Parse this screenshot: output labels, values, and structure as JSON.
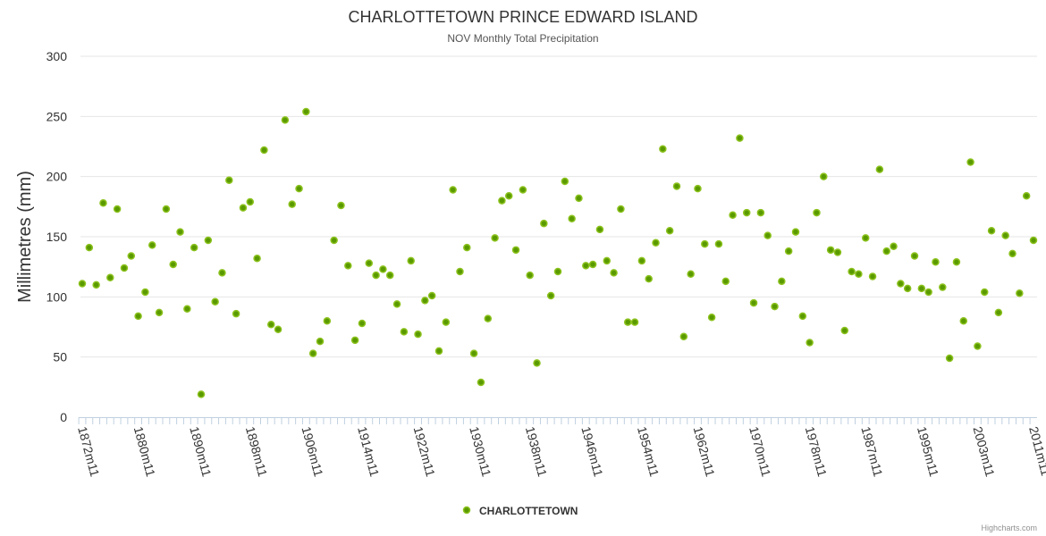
{
  "chart_data": {
    "type": "scatter",
    "title": "CHARLOTTETOWN PRINCE EDWARD ISLAND",
    "subtitle": "NOV Monthly Total Precipitation",
    "xlabel": "",
    "ylabel": "Millimetres (mm)",
    "ylim": [
      0,
      300
    ],
    "yticks": [
      0,
      50,
      100,
      150,
      200,
      250,
      300
    ],
    "grid": true,
    "legend_position": "bottom-center",
    "categories": [
      "1872m11",
      "1873m11",
      "1874m11",
      "1875m11",
      "1876m11",
      "1877m11",
      "1878m11",
      "1879m11",
      "1880m11",
      "1881m11",
      "1884m11",
      "1885m11",
      "1886m11",
      "1887m11",
      "1888m11",
      "1889m11",
      "1890m11",
      "1891m11",
      "1892m11",
      "1893m11",
      "1894m11",
      "1895m11",
      "1896m11",
      "1897m11",
      "1898m11",
      "1899m11",
      "1900m11",
      "1901m11",
      "1902m11",
      "1903m11",
      "1904m11",
      "1905m11",
      "1906m11",
      "1907m11",
      "1908m11",
      "1909m11",
      "1910m11",
      "1911m11",
      "1912m11",
      "1913m11",
      "1914m11",
      "1915m11",
      "1916m11",
      "1917m11",
      "1918m11",
      "1919m11",
      "1920m11",
      "1921m11",
      "1922m11",
      "1923m11",
      "1924m11",
      "1925m11",
      "1926m11",
      "1927m11",
      "1928m11",
      "1929m11",
      "1930m11",
      "1931m11",
      "1932m11",
      "1933m11",
      "1934m11",
      "1935m11",
      "1936m11",
      "1937m11",
      "1938m11",
      "1939m11",
      "1940m11",
      "1941m11",
      "1942m11",
      "1943m11",
      "1944m11",
      "1945m11",
      "1946m11",
      "1947m11",
      "1948m11",
      "1949m11",
      "1950m11",
      "1951m11",
      "1952m11",
      "1953m11",
      "1954m11",
      "1955m11",
      "1956m11",
      "1957m11",
      "1958m11",
      "1959m11",
      "1960m11",
      "1961m11",
      "1962m11",
      "1963m11",
      "1964m11",
      "1965m11",
      "1966m11",
      "1967m11",
      "1968m11",
      "1969m11",
      "1970m11",
      "1971m11",
      "1972m11",
      "1973m11",
      "1974m11",
      "1975m11",
      "1976m11",
      "1977m11",
      "1978m11",
      "1979m11",
      "1981m11",
      "1982m11",
      "1983m11",
      "1984m11",
      "1985m11",
      "1986m11",
      "1987m11",
      "1988m11",
      "1989m11",
      "1990m11",
      "1991m11",
      "1992m11",
      "1993m11",
      "1994m11",
      "1995m11",
      "1996m11",
      "1997m11",
      "1998m11",
      "1999m11",
      "2000m11",
      "2001m11",
      "2002m11",
      "2003m11",
      "2004m11",
      "2005m11",
      "2006m11",
      "2007m11",
      "2008m11",
      "2009m11",
      "2010m11",
      "2011m11"
    ],
    "tick_label_every": 8,
    "series": [
      {
        "name": "CHARLOTTETOWN",
        "color": "#5a9a00",
        "values": [
          111,
          141,
          110,
          178,
          116,
          173,
          124,
          134,
          84,
          104,
          143,
          87,
          173,
          127,
          154,
          90,
          141,
          19,
          147,
          96,
          120,
          197,
          86,
          174,
          179,
          132,
          222,
          77,
          73,
          247,
          177,
          190,
          254,
          53,
          63,
          80,
          147,
          176,
          126,
          64,
          78,
          128,
          118,
          123,
          118,
          94,
          71,
          130,
          69,
          97,
          101,
          55,
          79,
          189,
          121,
          141,
          53,
          29,
          82,
          149,
          180,
          184,
          139,
          189,
          118,
          45,
          161,
          101,
          121,
          196,
          165,
          182,
          126,
          127,
          156,
          130,
          120,
          173,
          79,
          79,
          130,
          115,
          145,
          223,
          155,
          192,
          67,
          119,
          190,
          144,
          83,
          144,
          113,
          168,
          232,
          170,
          95,
          170,
          151,
          92,
          113,
          138,
          154,
          84,
          62,
          170,
          200,
          139,
          137,
          72,
          121,
          119,
          149,
          117,
          206,
          138,
          142,
          111,
          107,
          134,
          107,
          104,
          129,
          108,
          49,
          129,
          80,
          212,
          59,
          104,
          155,
          87,
          151,
          136,
          103,
          184,
          147
        ]
      }
    ]
  },
  "credit": "Highcharts.com"
}
